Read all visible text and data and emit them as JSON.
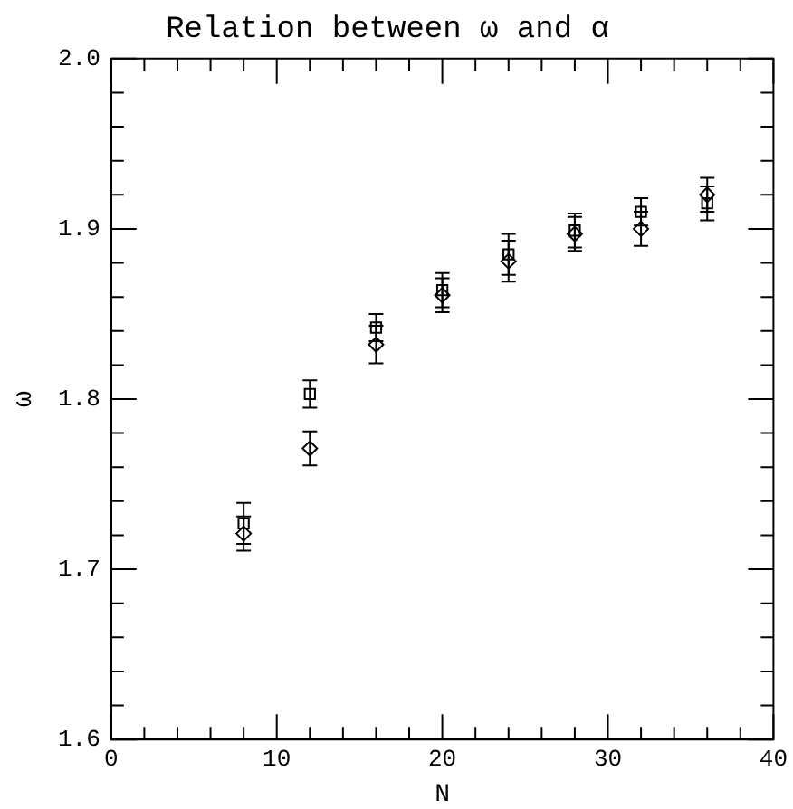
{
  "chart_data": {
    "type": "scatter",
    "title": "Relation between ω and α",
    "xlabel": "N",
    "ylabel": "ω",
    "x": [
      8,
      12,
      16,
      20,
      24,
      28,
      32,
      36
    ],
    "series": [
      {
        "color": "#000000",
        "marker": "square",
        "values": [
          1.727,
          1.803,
          1.842,
          1.864,
          1.885,
          1.899,
          1.91,
          1.915
        ],
        "errors": [
          0.012,
          0.008,
          0.008,
          0.01,
          0.012,
          0.01,
          0.008,
          0.01
        ]
      },
      {
        "color": "#000000",
        "marker": "diamond",
        "values": [
          1.721,
          1.771,
          1.832,
          1.861,
          1.881,
          1.897,
          1.9,
          1.92
        ],
        "errors": [
          0.01,
          0.01,
          0.011,
          0.01,
          0.012,
          0.01,
          0.01,
          0.01
        ]
      }
    ],
    "xlim": [
      0,
      40
    ],
    "ylim": [
      1.6,
      2.0
    ],
    "xticks": [
      0,
      {
        "value": 2,
        "label": null
      },
      {
        "value": 4,
        "label": null
      },
      {
        "value": 6,
        "label": null
      },
      {
        "value": 8,
        "label": null
      },
      10,
      {
        "value": 12,
        "label": null
      },
      {
        "value": 14,
        "label": null
      },
      {
        "value": 16,
        "label": null
      },
      {
        "value": 18,
        "label": null
      },
      20,
      {
        "value": 22,
        "label": null
      },
      {
        "value": 24,
        "label": null
      },
      {
        "value": 26,
        "label": null
      },
      {
        "value": 28,
        "label": null
      },
      30,
      {
        "value": 32,
        "label": null
      },
      {
        "value": 34,
        "label": null
      },
      {
        "value": 36,
        "label": null
      },
      {
        "value": 38,
        "label": null
      },
      40
    ],
    "yticks": [
      {
        "value": 1.6,
        "label": "1.6"
      },
      {
        "value": 1.62,
        "label": null
      },
      {
        "value": 1.64,
        "label": null
      },
      {
        "value": 1.66,
        "label": null
      },
      {
        "value": 1.68,
        "label": null
      },
      {
        "value": 1.7,
        "label": "1.7"
      },
      {
        "value": 1.72,
        "label": null
      },
      {
        "value": 1.74,
        "label": null
      },
      {
        "value": 1.76,
        "label": null
      },
      {
        "value": 1.78,
        "label": null
      },
      {
        "value": 1.8,
        "label": "1.8"
      },
      {
        "value": 1.82,
        "label": null
      },
      {
        "value": 1.84,
        "label": null
      },
      {
        "value": 1.86,
        "label": null
      },
      {
        "value": 1.88,
        "label": null
      },
      {
        "value": 1.9,
        "label": "1.9"
      },
      {
        "value": 1.92,
        "label": null
      },
      {
        "value": 1.94,
        "label": null
      },
      {
        "value": 1.96,
        "label": null
      },
      {
        "value": 1.98,
        "label": null
      },
      {
        "value": 2.0,
        "label": "2.0"
      }
    ],
    "grid": false,
    "legend": false
  }
}
